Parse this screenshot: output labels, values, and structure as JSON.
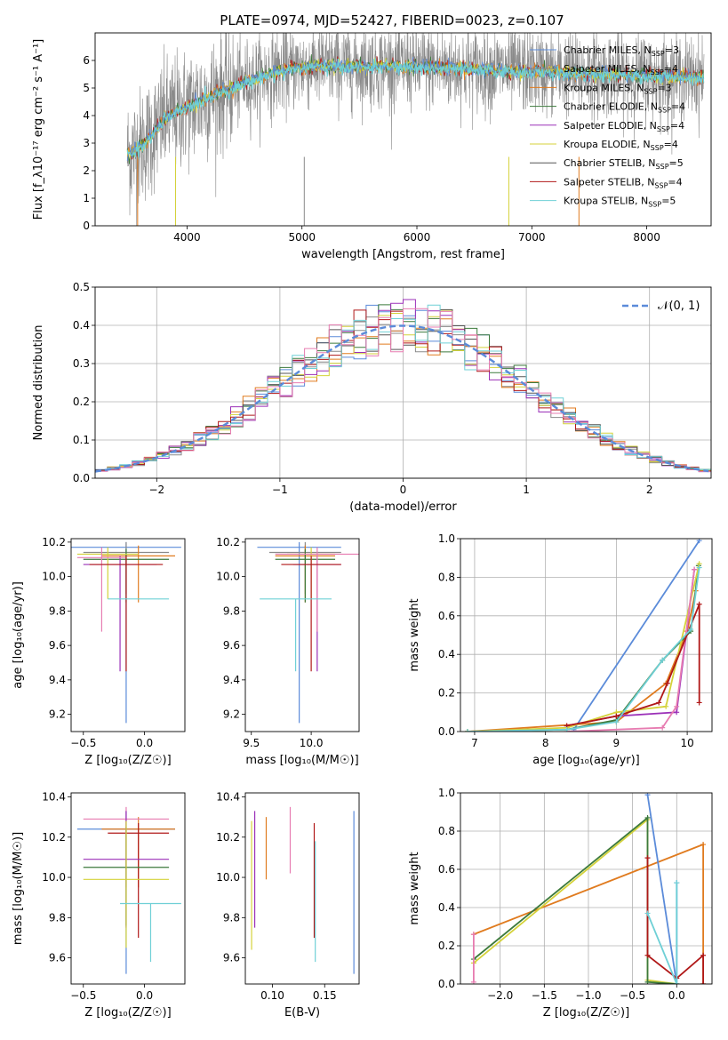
{
  "page_title": "PLATE=0974, MJD=52427, FIBERID=0023, z=0.107",
  "colors": {
    "chabrier_miles": "#5b8bd9",
    "salpeter_miles": "#8a8a8a",
    "kroupa_miles": "#e07b1f",
    "chabrier_elodie": "#3c7a3c",
    "salpeter_elodie": "#9b30b8",
    "kroupa_elodie": "#d4d23a",
    "chabrier_stelib": "#555555",
    "salpeter_stelib": "#b01818",
    "kroupa_stelib": "#6fd0d6",
    "pink": "#e77cb1",
    "green": "#6aa84f",
    "grid": "#b0b0b0"
  },
  "chart_data": [
    {
      "id": "spectrum",
      "type": "line",
      "title": "PLATE=0974, MJD=52427, FIBERID=0023, z=0.107",
      "xlabel": "wavelength [Angstrom, rest frame]",
      "ylabel": "Flux [f_λ10⁻¹⁷ erg cm⁻² s⁻¹ A⁻¹]",
      "xlim": [
        3200,
        8560
      ],
      "ylim": [
        0,
        7
      ],
      "xticks": [
        "4000",
        "5000",
        "6000",
        "7000",
        "8000"
      ],
      "yticks": [
        "0",
        "1",
        "2",
        "3",
        "4",
        "5",
        "6"
      ],
      "legend_position": "right",
      "legend": [
        "Chabrier MILES, N_SSP=3",
        "Salpeter MILES, N_SSP=4",
        "Kroupa MILES, N_SSP=3",
        "Chabrier ELODIE, N_SSP=4",
        "Salpeter ELODIE, N_SSP=4",
        "Kroupa ELODIE, N_SSP=4",
        "Chabrier STELIB, N_SSP=5",
        "Salpeter STELIB, N_SSP=4",
        "Kroupa STELIB, N_SSP=5"
      ],
      "model_trend": {
        "x": [
          3500,
          3600,
          3700,
          3800,
          3900,
          4000,
          4100,
          4200,
          4300,
          4400,
          4500,
          4700,
          4900,
          5100,
          5300,
          5500,
          5800,
          6100,
          6400,
          6700,
          7000,
          7300,
          7600,
          8000,
          8500
        ],
        "y": [
          2.6,
          2.9,
          3.3,
          3.9,
          4.1,
          4.3,
          4.5,
          4.7,
          4.9,
          5.0,
          5.2,
          5.5,
          5.7,
          5.8,
          5.8,
          5.8,
          5.8,
          5.75,
          5.7,
          5.65,
          5.6,
          5.55,
          5.5,
          5.45,
          5.4
        ]
      },
      "data_noise_sigma": 1.8
    },
    {
      "id": "residual_histogram",
      "type": "line",
      "xlabel": "(data-model)/error",
      "ylabel": "Normed distribution",
      "xlim": [
        -2.5,
        2.5
      ],
      "ylim": [
        0,
        0.5
      ],
      "xticks": [
        "−2",
        "−1",
        "0",
        "1",
        "2"
      ],
      "yticks": [
        "0.0",
        "0.1",
        "0.2",
        "0.3",
        "0.4",
        "0.5"
      ],
      "legend": [
        "𝒩(0, 1)"
      ],
      "legend_position": "upper right",
      "bin_width": 0.1,
      "gaussian": {
        "mean": 0,
        "sigma": 1,
        "peak": 0.399
      }
    },
    {
      "id": "age_vs_Z",
      "type": "scatter",
      "xlabel": "Z [log₁₀(Z/Z☉)]",
      "ylabel": "age  [log₁₀(age/yr)]",
      "xlim": [
        -0.6,
        0.33
      ],
      "ylim": [
        9.1,
        10.22
      ],
      "xticks": [
        "−0.5",
        "0.0"
      ],
      "yticks": [
        "9.2",
        "9.4",
        "9.6",
        "9.8",
        "10.0",
        "10.2"
      ],
      "errorbars": [
        {
          "color": "chabrier_miles",
          "x": -0.15,
          "xerr": 0.45,
          "y": 10.17,
          "ylo": 9.15,
          "yhi": 10.2
        },
        {
          "color": "salpeter_miles",
          "x": -0.15,
          "xerr": 0.35,
          "y": 10.14,
          "ylo": 9.9,
          "yhi": 10.2
        },
        {
          "color": "kroupa_miles",
          "x": -0.05,
          "xerr": 0.3,
          "y": 10.12,
          "ylo": 9.85,
          "yhi": 10.18
        },
        {
          "color": "chabrier_elodie",
          "x": -0.15,
          "xerr": 0.35,
          "y": 10.1,
          "ylo": 9.85,
          "yhi": 10.16
        },
        {
          "color": "salpeter_elodie",
          "x": -0.2,
          "xerr": 0.3,
          "y": 10.07,
          "ylo": 9.45,
          "yhi": 10.12
        },
        {
          "color": "kroupa_elodie",
          "x": -0.3,
          "xerr": 0.25,
          "y": 10.13,
          "ylo": 9.87,
          "yhi": 10.17
        },
        {
          "color": "pink",
          "x": -0.35,
          "xerr": 0.2,
          "y": 10.11,
          "ylo": 9.68,
          "yhi": 10.17
        },
        {
          "color": "salpeter_stelib",
          "x": -0.15,
          "xerr": 0.3,
          "y": 10.07,
          "ylo": 9.45,
          "yhi": 10.12
        },
        {
          "color": "kroupa_stelib",
          "x": -0.05,
          "xerr": 0.25,
          "y": 9.87,
          "ylo": 9.87,
          "yhi": 9.87
        }
      ]
    },
    {
      "id": "age_vs_mass",
      "type": "scatter",
      "xlabel": "mass [log₁₀(M/M☉)]",
      "ylabel": "",
      "xlim": [
        9.45,
        10.4
      ],
      "ylim": [
        9.1,
        10.22
      ],
      "xticks": [
        "9.5",
        "10.0"
      ],
      "yticks": [
        "9.2",
        "9.4",
        "9.6",
        "9.8",
        "10.0",
        "10.2"
      ],
      "errorbars": [
        {
          "color": "chabrier_miles",
          "x": 9.9,
          "xerr": 0.35,
          "y": 10.17,
          "ylo": 9.15,
          "yhi": 10.2
        },
        {
          "color": "salpeter_miles",
          "x": 9.95,
          "xerr": 0.3,
          "y": 10.14,
          "ylo": 9.9,
          "yhi": 10.2
        },
        {
          "color": "kroupa_miles",
          "x": 9.95,
          "xerr": 0.25,
          "y": 10.12,
          "ylo": 9.85,
          "yhi": 10.18
        },
        {
          "color": "chabrier_elodie",
          "x": 9.95,
          "xerr": 0.25,
          "y": 10.1,
          "ylo": 9.85,
          "yhi": 10.16
        },
        {
          "color": "salpeter_elodie",
          "x": 10.05,
          "xerr": 0.2,
          "y": 10.07,
          "ylo": 9.45,
          "yhi": 10.12
        },
        {
          "color": "kroupa_elodie",
          "x": 10.0,
          "xerr": 0.2,
          "y": 10.13,
          "ylo": 9.87,
          "yhi": 10.17
        },
        {
          "color": "pink",
          "x": 10.05,
          "xerr": 0.35,
          "y": 10.13,
          "ylo": 9.68,
          "yhi": 10.17
        },
        {
          "color": "salpeter_stelib",
          "x": 10.0,
          "xerr": 0.25,
          "y": 10.07,
          "ylo": 9.45,
          "yhi": 10.12
        },
        {
          "color": "kroupa_stelib",
          "x": 9.87,
          "xerr": 0.3,
          "y": 9.87,
          "ylo": 9.45,
          "yhi": 9.87
        }
      ]
    },
    {
      "id": "massweight_vs_age",
      "type": "line",
      "xlabel": "age  [log₁₀(age/yr)]",
      "ylabel": "mass weight",
      "xlim": [
        6.8,
        10.35
      ],
      "ylim": [
        0,
        1
      ],
      "xticks": [
        "7",
        "8",
        "9",
        "10"
      ],
      "yticks": [
        "0.0",
        "0.2",
        "0.4",
        "0.6",
        "0.8",
        "1.0"
      ],
      "series": [
        {
          "color": "chabrier_miles",
          "x": [
            8.4,
            10.17
          ],
          "y": [
            0.01,
            0.99
          ]
        },
        {
          "color": "kroupa_miles",
          "x": [
            6.9,
            9.0,
            9.7,
            10.0,
            10.12
          ],
          "y": [
            0.0,
            0.05,
            0.25,
            0.52,
            0.73
          ]
        },
        {
          "color": "chabrier_elodie",
          "x": [
            6.9,
            8.3,
            9.0,
            9.65,
            10.05,
            10.16
          ],
          "y": [
            0.0,
            0.01,
            0.06,
            0.37,
            0.52,
            0.86
          ]
        },
        {
          "color": "salpeter_elodie",
          "x": [
            8.3,
            9.0,
            9.85,
            10.1
          ],
          "y": [
            0.03,
            0.08,
            0.1,
            0.84
          ]
        },
        {
          "color": "kroupa_elodie",
          "x": [
            6.9,
            8.3,
            9.0,
            9.7,
            10.17
          ],
          "y": [
            0.0,
            0.02,
            0.1,
            0.13,
            0.87
          ]
        },
        {
          "color": "pink",
          "x": [
            8.3,
            9.65,
            9.85,
            10.1
          ],
          "y": [
            0.0,
            0.02,
            0.13,
            0.84
          ]
        },
        {
          "color": "salpeter_stelib",
          "x": [
            8.3,
            9.0,
            9.6,
            9.72,
            10.17,
            10.17
          ],
          "y": [
            0.03,
            0.08,
            0.15,
            0.25,
            0.66,
            0.15
          ]
        },
        {
          "color": "kroupa_stelib",
          "x": [
            6.9,
            8.3,
            9.0,
            9.65,
            10.05,
            10.17
          ],
          "y": [
            0.0,
            0.01,
            0.05,
            0.37,
            0.53,
            0.85
          ]
        }
      ]
    },
    {
      "id": "mass_vs_Z",
      "type": "scatter",
      "xlabel": "Z [log₁₀(Z/Z☉)]",
      "ylabel": "mass [log₁₀(M/M☉)]",
      "xlim": [
        -0.6,
        0.33
      ],
      "ylim": [
        9.47,
        10.42
      ],
      "xticks": [
        "−0.5",
        "0.0"
      ],
      "yticks": [
        "9.6",
        "9.8",
        "10.0",
        "10.2",
        "10.4"
      ],
      "errorbars": [
        {
          "color": "chabrier_miles",
          "x": -0.15,
          "xerr": 0.4,
          "y": 10.24,
          "ylo": 9.52,
          "yhi": 10.33
        },
        {
          "color": "kroupa_miles",
          "x": -0.05,
          "xerr": 0.3,
          "y": 10.24,
          "ylo": 9.95,
          "yhi": 10.3
        },
        {
          "color": "salpeter_stelib",
          "x": -0.05,
          "xerr": 0.25,
          "y": 10.22,
          "ylo": 9.7,
          "yhi": 10.27
        },
        {
          "color": "pink",
          "x": -0.15,
          "xerr": 0.35,
          "y": 10.29,
          "ylo": 9.95,
          "yhi": 10.35
        },
        {
          "color": "salpeter_elodie",
          "x": -0.15,
          "xerr": 0.35,
          "y": 10.09,
          "ylo": 9.75,
          "yhi": 10.33
        },
        {
          "color": "chabrier_elodie",
          "x": -0.15,
          "xerr": 0.35,
          "y": 10.05,
          "ylo": 9.76,
          "yhi": 10.25
        },
        {
          "color": "kroupa_elodie",
          "x": -0.15,
          "xerr": 0.35,
          "y": 9.99,
          "ylo": 9.65,
          "yhi": 10.28
        },
        {
          "color": "kroupa_stelib",
          "x": 0.05,
          "xerr": 0.25,
          "y": 9.87,
          "ylo": 9.58,
          "yhi": 9.87
        }
      ]
    },
    {
      "id": "mass_vs_ebv",
      "type": "scatter",
      "xlabel": "E(B-V)",
      "ylabel": "",
      "xlim": [
        0.074,
        0.183
      ],
      "ylim": [
        9.47,
        10.42
      ],
      "xticks": [
        "0.10",
        "0.15"
      ],
      "yticks": [
        "9.6",
        "9.8",
        "10.0",
        "10.2",
        "10.4"
      ],
      "vlines": [
        {
          "color": "kroupa_elodie",
          "x": 0.08,
          "ylo": 9.64,
          "yhi": 10.28
        },
        {
          "color": "salpeter_elodie",
          "x": 0.083,
          "ylo": 9.75,
          "yhi": 10.33
        },
        {
          "color": "kroupa_miles",
          "x": 0.094,
          "ylo": 9.99,
          "yhi": 10.3
        },
        {
          "color": "pink",
          "x": 0.117,
          "ylo": 10.02,
          "yhi": 10.35
        },
        {
          "color": "salpeter_stelib",
          "x": 0.14,
          "ylo": 9.7,
          "yhi": 10.27
        },
        {
          "color": "kroupa_stelib",
          "x": 0.141,
          "ylo": 9.58,
          "yhi": 10.18
        },
        {
          "color": "chabrier_miles",
          "x": 0.178,
          "ylo": 9.52,
          "yhi": 10.33
        }
      ]
    },
    {
      "id": "massweight_vs_Z",
      "type": "line",
      "xlabel": "Z [log₁₀(Z/Z☉)]",
      "ylabel": "mass weight",
      "xlim": [
        -2.45,
        0.4
      ],
      "ylim": [
        0,
        1
      ],
      "xticks": [
        "−2.0",
        "−1.5",
        "−1.0",
        "−0.5",
        "0.0"
      ],
      "yticks": [
        "0.0",
        "0.2",
        "0.4",
        "0.6",
        "0.8",
        "1.0"
      ],
      "series": [
        {
          "color": "kroupa_miles",
          "x": [
            -2.3,
            0.3,
            0.3
          ],
          "y": [
            0.26,
            0.73,
            0.0
          ]
        },
        {
          "color": "chabrier_miles",
          "x": [
            -0.33,
            0.0,
            0.0
          ],
          "y": [
            0.99,
            0.0,
            0.53
          ]
        },
        {
          "color": "kroupa_elodie",
          "x": [
            -2.3,
            -0.33,
            -0.33,
            0.0
          ],
          "y": [
            0.11,
            0.86,
            0.02,
            0.0
          ]
        },
        {
          "color": "chabrier_elodie",
          "x": [
            -2.3,
            -0.33,
            -0.33,
            0.0
          ],
          "y": [
            0.13,
            0.87,
            0.01,
            0.0
          ]
        },
        {
          "color": "pink",
          "x": [
            -2.3,
            -2.3
          ],
          "y": [
            0.26,
            0.01
          ]
        },
        {
          "color": "salpeter_stelib",
          "x": [
            -0.33,
            -0.33,
            0.0,
            0.3,
            0.3
          ],
          "y": [
            0.66,
            0.15,
            0.03,
            0.15,
            0.0
          ]
        },
        {
          "color": "kroupa_stelib",
          "x": [
            -0.33,
            0.0,
            0.0
          ],
          "y": [
            0.37,
            0.0,
            0.53
          ]
        }
      ]
    }
  ]
}
